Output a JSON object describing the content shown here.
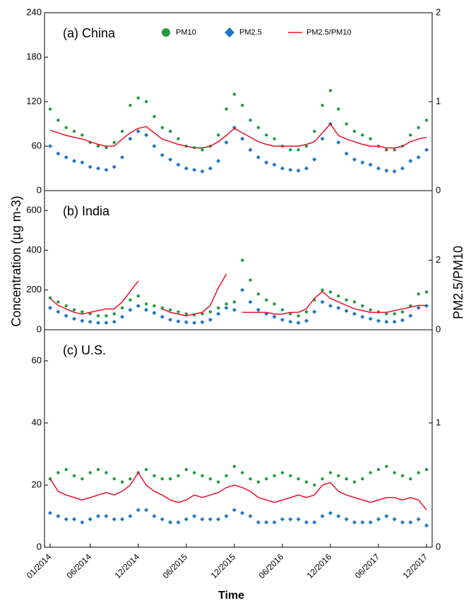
{
  "chart_data": [
    {
      "type": "line",
      "title": "(a)  China",
      "legend": "upper center",
      "x": [
        "01/2014",
        "02/2014",
        "03/2014",
        "04/2014",
        "05/2014",
        "06/2014",
        "07/2014",
        "08/2014",
        "09/2014",
        "10/2014",
        "11/2014",
        "12/2014",
        "01/2015",
        "02/2015",
        "03/2015",
        "04/2015",
        "05/2015",
        "06/2015",
        "07/2015",
        "08/2015",
        "09/2015",
        "10/2015",
        "11/2015",
        "12/2015",
        "01/2016",
        "02/2016",
        "03/2016",
        "04/2016",
        "05/2016",
        "06/2016",
        "07/2016",
        "08/2016",
        "09/2016",
        "10/2016",
        "11/2016",
        "12/2016",
        "01/2017",
        "02/2017",
        "03/2017",
        "04/2017",
        "05/2017",
        "06/2017",
        "07/2017",
        "08/2017",
        "09/2017",
        "10/2017",
        "11/2017",
        "12/2017"
      ],
      "ylim": [
        0,
        240
      ],
      "yticks": [
        0,
        60,
        120,
        180,
        240
      ],
      "y2lim": [
        0,
        2
      ],
      "y2ticks": [
        0,
        1,
        2
      ],
      "series": [
        {
          "name": "PM10",
          "color": "#1f9a3a",
          "marker": "circle",
          "values": [
            110,
            95,
            85,
            80,
            75,
            65,
            60,
            58,
            65,
            80,
            115,
            125,
            120,
            100,
            85,
            80,
            70,
            60,
            58,
            55,
            60,
            75,
            110,
            130,
            115,
            95,
            85,
            75,
            70,
            60,
            55,
            55,
            60,
            80,
            115,
            135,
            110,
            90,
            80,
            75,
            70,
            60,
            55,
            55,
            60,
            75,
            85,
            95
          ]
        },
        {
          "name": "PM2.5",
          "color": "#1f74c8",
          "marker": "diamond",
          "values": [
            60,
            50,
            45,
            40,
            38,
            32,
            30,
            28,
            32,
            45,
            70,
            80,
            75,
            60,
            48,
            42,
            35,
            30,
            28,
            26,
            30,
            40,
            65,
            85,
            70,
            55,
            45,
            38,
            35,
            30,
            28,
            27,
            30,
            42,
            70,
            90,
            65,
            50,
            42,
            38,
            35,
            30,
            27,
            26,
            30,
            40,
            45,
            55
          ]
        },
        {
          "name": "PM2.5/PM10",
          "color": "#e8102a",
          "marker": "line",
          "axis": "y2",
          "values": [
            0.68,
            0.65,
            0.62,
            0.6,
            0.58,
            0.55,
            0.52,
            0.5,
            0.5,
            0.58,
            0.65,
            0.7,
            0.72,
            0.65,
            0.58,
            0.55,
            0.52,
            0.5,
            0.48,
            0.48,
            0.5,
            0.55,
            0.62,
            0.7,
            0.65,
            0.6,
            0.55,
            0.52,
            0.5,
            0.5,
            0.5,
            0.5,
            0.52,
            0.55,
            0.65,
            0.75,
            0.62,
            0.58,
            0.55,
            0.52,
            0.5,
            0.5,
            0.48,
            0.48,
            0.5,
            0.55,
            0.58,
            0.6
          ]
        }
      ]
    },
    {
      "type": "line",
      "title": "(b)  India",
      "ylabel": "Concentration (μg m-3)",
      "y2label": "PM2.5/PM10",
      "x": [
        "01/2014",
        "02/2014",
        "03/2014",
        "04/2014",
        "05/2014",
        "06/2014",
        "07/2014",
        "08/2014",
        "09/2014",
        "10/2014",
        "11/2014",
        "12/2014",
        "01/2015",
        "02/2015",
        "03/2015",
        "04/2015",
        "05/2015",
        "06/2015",
        "07/2015",
        "08/2015",
        "09/2015",
        "10/2015",
        "11/2015",
        "12/2015",
        "01/2016",
        "02/2016",
        "03/2016",
        "04/2016",
        "05/2016",
        "06/2016",
        "07/2016",
        "08/2016",
        "09/2016",
        "10/2016",
        "11/2016",
        "12/2016",
        "01/2017",
        "02/2017",
        "03/2017",
        "04/2017",
        "05/2017",
        "06/2017",
        "07/2017",
        "08/2017",
        "09/2017",
        "10/2017",
        "11/2017",
        "12/2017"
      ],
      "ylim": [
        0,
        700
      ],
      "yticks": [
        0,
        200,
        400,
        600
      ],
      "y2lim": [
        0,
        4
      ],
      "y2ticks": [
        0,
        2
      ],
      "series": [
        {
          "name": "PM10",
          "color": "#1f9a3a",
          "marker": "circle",
          "values": [
            160,
            140,
            120,
            100,
            90,
            80,
            70,
            70,
            80,
            110,
            150,
            170,
            130,
            120,
            110,
            100,
            90,
            80,
            75,
            80,
            90,
            110,
            130,
            140,
            350,
            250,
            180,
            150,
            130,
            100,
            80,
            70,
            90,
            150,
            200,
            190,
            170,
            150,
            140,
            120,
            100,
            90,
            80,
            80,
            90,
            120,
            180,
            190
          ]
        },
        {
          "name": "PM2.5",
          "color": "#1f74c8",
          "marker": "diamond",
          "values": [
            110,
            90,
            70,
            55,
            45,
            40,
            35,
            35,
            40,
            65,
            100,
            120,
            100,
            85,
            65,
            50,
            42,
            38,
            35,
            38,
            50,
            80,
            110,
            100,
            200,
            140,
            100,
            80,
            65,
            50,
            40,
            35,
            45,
            90,
            140,
            120,
            110,
            95,
            80,
            65,
            55,
            45,
            40,
            40,
            48,
            70,
            110,
            120
          ]
        },
        {
          "name": "PM2.5/PM10",
          "color": "#e8102a",
          "marker": "line",
          "axis": "y2",
          "values": [
            0.9,
            0.7,
            0.6,
            0.5,
            0.45,
            0.5,
            0.55,
            0.6,
            0.6,
            0.8,
            1.1,
            1.4,
            null,
            null,
            0.6,
            0.5,
            0.45,
            0.4,
            0.45,
            0.5,
            0.7,
            1.2,
            1.6,
            null,
            0.5,
            0.5,
            0.5,
            0.5,
            0.45,
            0.45,
            0.5,
            0.5,
            0.6,
            0.9,
            1.1,
            0.9,
            0.8,
            0.7,
            0.6,
            0.55,
            0.5,
            0.5,
            0.5,
            0.55,
            0.6,
            0.65,
            0.7,
            0.7
          ]
        }
      ]
    },
    {
      "type": "line",
      "title": "(c)  U.S.",
      "xlabel": "Time",
      "x": [
        "01/2014",
        "02/2014",
        "03/2014",
        "04/2014",
        "05/2014",
        "06/2014",
        "07/2014",
        "08/2014",
        "09/2014",
        "10/2014",
        "11/2014",
        "12/2014",
        "01/2015",
        "02/2015",
        "03/2015",
        "04/2015",
        "05/2015",
        "06/2015",
        "07/2015",
        "08/2015",
        "09/2015",
        "10/2015",
        "11/2015",
        "12/2015",
        "01/2016",
        "02/2016",
        "03/2016",
        "04/2016",
        "05/2016",
        "06/2016",
        "07/2016",
        "08/2016",
        "09/2016",
        "10/2016",
        "11/2016",
        "12/2016",
        "01/2017",
        "02/2017",
        "03/2017",
        "04/2017",
        "05/2017",
        "06/2017",
        "07/2017",
        "08/2017",
        "09/2017",
        "10/2017",
        "11/2017",
        "12/2017"
      ],
      "xticks": [
        "01/2014",
        "06/2014",
        "12/2014",
        "06/2015",
        "12/2015",
        "06/2016",
        "12/2016",
        "06/2017",
        "12/2017"
      ],
      "ylim": [
        0,
        70
      ],
      "yticks": [
        0,
        20,
        40,
        60
      ],
      "y2lim": [
        0,
        1.75
      ],
      "y2ticks": [
        0,
        1
      ],
      "series": [
        {
          "name": "PM10",
          "color": "#1f9a3a",
          "marker": "circle",
          "values": [
            22,
            24,
            25,
            23,
            22,
            24,
            25,
            24,
            22,
            21,
            22,
            24,
            25,
            23,
            22,
            22,
            23,
            25,
            24,
            23,
            22,
            21,
            23,
            26,
            24,
            22,
            21,
            22,
            23,
            24,
            23,
            22,
            21,
            20,
            22,
            24,
            23,
            22,
            21,
            22,
            24,
            25,
            26,
            24,
            23,
            22,
            24,
            25
          ]
        },
        {
          "name": "PM2.5",
          "color": "#1f74c8",
          "marker": "diamond",
          "values": [
            11,
            10,
            9,
            9,
            8,
            9,
            10,
            10,
            9,
            9,
            10,
            12,
            12,
            10,
            9,
            8,
            8,
            9,
            10,
            9,
            9,
            9,
            10,
            12,
            11,
            10,
            8,
            8,
            8,
            9,
            9,
            9,
            8,
            8,
            10,
            11,
            10,
            9,
            8,
            8,
            8,
            9,
            10,
            9,
            8,
            8,
            9,
            7
          ]
        },
        {
          "name": "PM2.5/PM10",
          "color": "#e8102a",
          "marker": "line",
          "axis": "y2",
          "values": [
            0.55,
            0.45,
            0.42,
            0.4,
            0.38,
            0.4,
            0.42,
            0.44,
            0.42,
            0.45,
            0.5,
            0.6,
            0.5,
            0.45,
            0.42,
            0.38,
            0.36,
            0.38,
            0.42,
            0.4,
            0.42,
            0.44,
            0.48,
            0.5,
            0.48,
            0.45,
            0.4,
            0.38,
            0.36,
            0.38,
            0.4,
            0.42,
            0.4,
            0.42,
            0.5,
            0.52,
            0.45,
            0.42,
            0.4,
            0.38,
            0.36,
            0.38,
            0.4,
            0.4,
            0.38,
            0.4,
            0.38,
            0.3
          ]
        }
      ]
    }
  ]
}
